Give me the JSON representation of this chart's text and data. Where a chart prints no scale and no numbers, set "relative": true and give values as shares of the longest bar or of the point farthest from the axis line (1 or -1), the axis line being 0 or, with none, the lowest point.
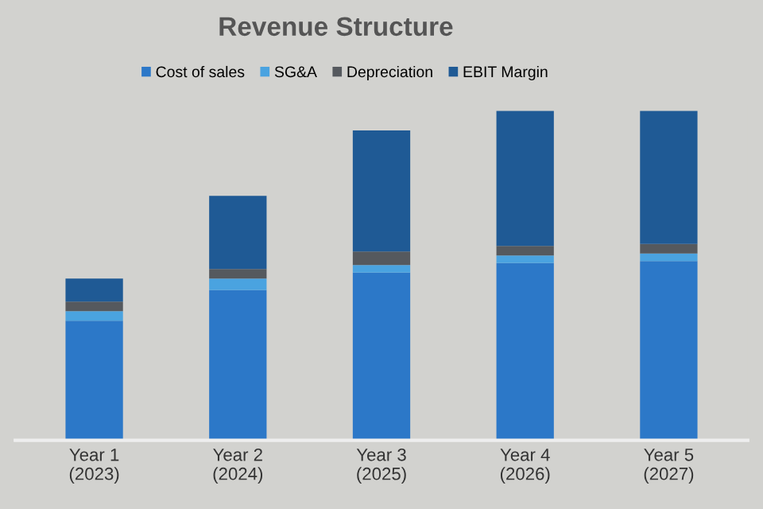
{
  "chart_data": {
    "type": "bar",
    "title": "Revenue Structure",
    "stacked": true,
    "relative": true,
    "legend": "top",
    "categories": [
      "Year 1\n(2023)",
      "Year 2\n(2024)",
      "Year 3\n(2025)",
      "Year 4\n(2026)",
      "Year 5\n(2027)"
    ],
    "series": [
      {
        "name": "Cost of sales",
        "color": "#2c78c8",
        "values": [
          0.363,
          0.456,
          0.509,
          0.538,
          0.544
        ]
      },
      {
        "name": "SG&A",
        "color": "#4aa3e0",
        "values": [
          0.029,
          0.035,
          0.023,
          0.023,
          0.023
        ]
      },
      {
        "name": "Depreciation",
        "color": "#55595e",
        "values": [
          0.029,
          0.029,
          0.041,
          0.029,
          0.029
        ]
      },
      {
        "name": "EBIT Margin",
        "color": "#1f5a95",
        "values": [
          0.07,
          0.222,
          0.368,
          0.41,
          0.404
        ]
      }
    ]
  }
}
